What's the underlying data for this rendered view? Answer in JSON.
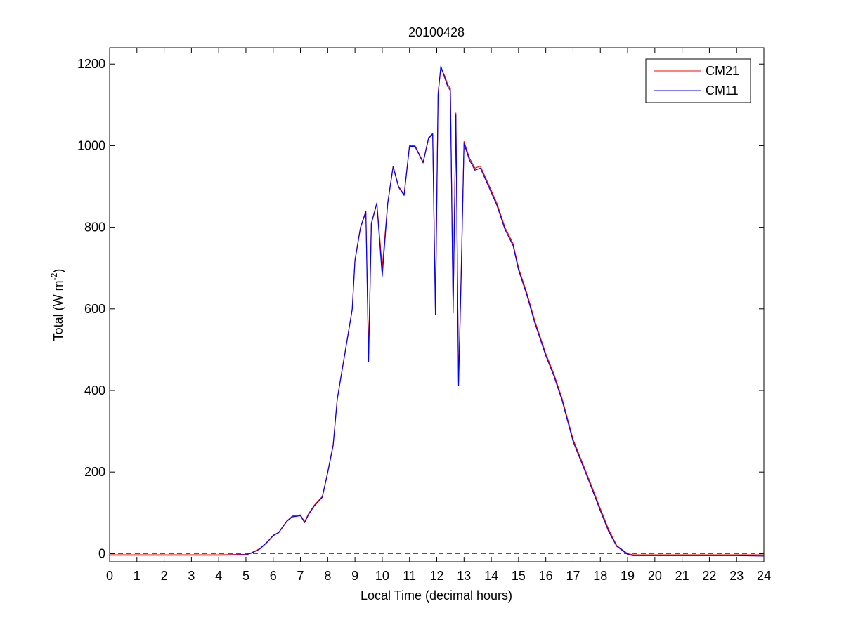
{
  "chart_data": {
    "type": "line",
    "title": "20100428",
    "xlabel": "Local Time (decimal hours)",
    "ylabel": "Total (W m",
    "ylabel_sup": "-2",
    "ylabel_close": ")",
    "xlim": [
      0,
      24
    ],
    "ylim": [
      -20,
      1240
    ],
    "xticks": [
      0,
      1,
      2,
      3,
      4,
      5,
      6,
      7,
      8,
      9,
      10,
      11,
      12,
      13,
      14,
      15,
      16,
      17,
      18,
      19,
      20,
      21,
      22,
      23,
      24
    ],
    "xtick_labels": [
      "0",
      "1",
      "2",
      "3",
      "4",
      "5",
      "6",
      "7",
      "8",
      "9",
      "10",
      "11",
      "12",
      "13",
      "14",
      "15",
      "16",
      "17",
      "18",
      "19",
      "20",
      "21",
      "22",
      "23",
      "24"
    ],
    "yticks": [
      0,
      200,
      400,
      600,
      800,
      1000,
      1200
    ],
    "ytick_labels": [
      "0",
      "200",
      "400",
      "600",
      "800",
      "1000",
      "1200"
    ],
    "grid": false,
    "legend_position": "top-right",
    "reference_line": {
      "y": 0,
      "style": "dashed",
      "color": "#cc0000"
    },
    "series": [
      {
        "name": "CM21",
        "color": "#ff0000",
        "x": [
          0,
          1,
          2,
          3,
          4,
          5,
          5.2,
          5.5,
          5.8,
          6.0,
          6.2,
          6.5,
          6.7,
          7.0,
          7.15,
          7.3,
          7.5,
          7.8,
          8.0,
          8.2,
          8.35,
          8.5,
          8.7,
          8.9,
          9.0,
          9.2,
          9.4,
          9.5,
          9.6,
          9.8,
          10.0,
          10.2,
          10.4,
          10.6,
          10.8,
          11.0,
          11.2,
          11.5,
          11.7,
          11.85,
          11.95,
          12.05,
          12.15,
          12.3,
          12.4,
          12.5,
          12.6,
          12.7,
          12.8,
          12.9,
          13.0,
          13.2,
          13.4,
          13.6,
          13.8,
          14.0,
          14.2,
          14.5,
          14.8,
          15.0,
          15.3,
          15.6,
          16.0,
          16.3,
          16.6,
          17.0,
          17.3,
          17.6,
          18.0,
          18.3,
          18.6,
          18.9,
          19.0,
          19.2,
          20,
          21,
          22,
          23,
          24
        ],
        "y": [
          -3,
          -3,
          -3,
          -3,
          -3,
          -2,
          2,
          12,
          30,
          45,
          52,
          80,
          92,
          95,
          78,
          98,
          118,
          140,
          200,
          268,
          380,
          440,
          520,
          600,
          720,
          800,
          840,
          490,
          810,
          860,
          700,
          860,
          950,
          900,
          880,
          1000,
          1000,
          960,
          1020,
          1030,
          600,
          1130,
          1190,
          1170,
          1150,
          1140,
          600,
          1080,
          420,
          700,
          1010,
          970,
          945,
          950,
          920,
          890,
          860,
          800,
          760,
          700,
          640,
          570,
          490,
          440,
          380,
          280,
          230,
          180,
          110,
          60,
          20,
          5,
          0,
          -3,
          -3,
          -3,
          -3,
          -3,
          -3
        ]
      },
      {
        "name": "CM11",
        "color": "#0000ff",
        "x": [
          0,
          1,
          2,
          3,
          4,
          5,
          5.2,
          5.5,
          5.8,
          6.0,
          6.2,
          6.5,
          6.7,
          7.0,
          7.15,
          7.3,
          7.5,
          7.8,
          8.0,
          8.2,
          8.35,
          8.5,
          8.7,
          8.9,
          9.0,
          9.2,
          9.4,
          9.5,
          9.6,
          9.8,
          10.0,
          10.2,
          10.4,
          10.6,
          10.8,
          11.0,
          11.2,
          11.5,
          11.7,
          11.85,
          11.95,
          12.05,
          12.15,
          12.3,
          12.4,
          12.5,
          12.6,
          12.7,
          12.8,
          12.9,
          13.0,
          13.2,
          13.4,
          13.6,
          13.8,
          14.0,
          14.2,
          14.5,
          14.8,
          15.0,
          15.3,
          15.6,
          16.0,
          16.3,
          16.6,
          17.0,
          17.3,
          17.6,
          18.0,
          18.3,
          18.6,
          18.9,
          19.0,
          19.2,
          20,
          21,
          22,
          23,
          24
        ],
        "y": [
          -4,
          -4,
          -4,
          -4,
          -4,
          -3,
          1,
          11,
          29,
          44,
          51,
          79,
          90,
          93,
          76,
          96,
          116,
          138,
          198,
          265,
          378,
          438,
          518,
          598,
          718,
          798,
          838,
          470,
          808,
          858,
          680,
          858,
          948,
          898,
          878,
          998,
          998,
          958,
          1018,
          1028,
          585,
          1125,
          1195,
          1165,
          1145,
          1135,
          590,
          1075,
          412,
          690,
          1005,
          965,
          940,
          945,
          915,
          885,
          855,
          795,
          755,
          695,
          635,
          565,
          485,
          435,
          375,
          275,
          225,
          175,
          105,
          55,
          18,
          3,
          -2,
          -5,
          -5,
          -5,
          -5,
          -5,
          -6
        ]
      }
    ]
  }
}
